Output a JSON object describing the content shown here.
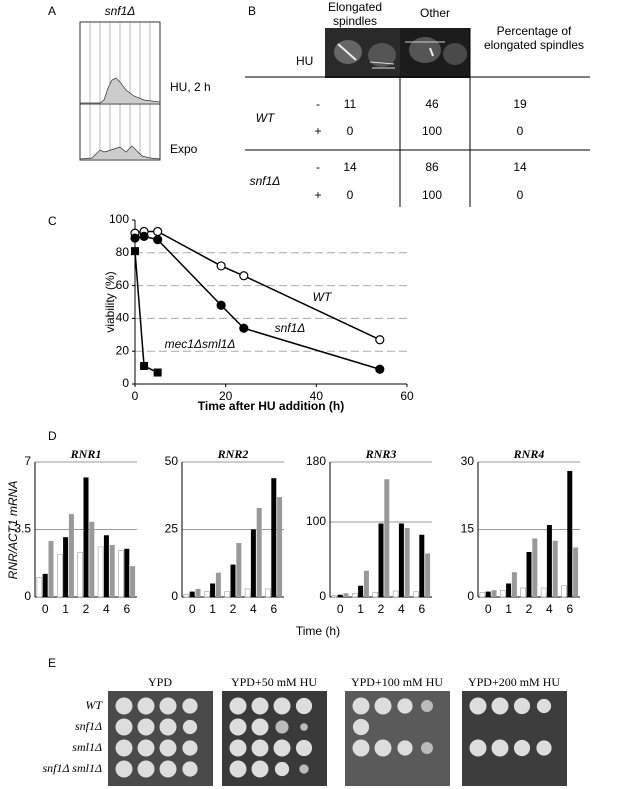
{
  "panels": {
    "a": {
      "label": "A",
      "title": "snf1Δ",
      "rows": [
        "HU, 2 h",
        "Expo"
      ]
    },
    "b": {
      "label": "B",
      "hu_header": "HU",
      "columns": [
        "Elongated spindles",
        "Other",
        "Percentage of elongated spindles"
      ],
      "groups": [
        {
          "strain": "WT",
          "rows": [
            {
              "hu": "-",
              "values": [
                11,
                46,
                19
              ]
            },
            {
              "hu": "+",
              "values": [
                0,
                100,
                0
              ]
            }
          ]
        },
        {
          "strain": "snf1Δ",
          "rows": [
            {
              "hu": "-",
              "values": [
                14,
                86,
                14
              ]
            },
            {
              "hu": "+",
              "values": [
                0,
                100,
                0
              ]
            }
          ]
        }
      ]
    },
    "d": {
      "label": "D",
      "ylabel": "RNR/ACT1 mRNA",
      "xlabel": "Time (h)"
    },
    "e": {
      "label": "E",
      "conditions": [
        "YPD",
        "YPD+50 mM HU",
        "YPD+100 mM HU",
        "YPD+200 mM HU"
      ],
      "strains": [
        "WT",
        "snf1Δ",
        "sml1Δ",
        "snf1Δ sml1Δ"
      ]
    }
  },
  "chart_data": [
    {
      "type": "line",
      "label": "C",
      "xlabel": "Time after HU addition (h)",
      "ylabel": "viability (%)",
      "xlim": [
        0,
        60
      ],
      "xticks": [
        0,
        20,
        40,
        60
      ],
      "ylim": [
        0,
        100
      ],
      "yticks": [
        0,
        20,
        40,
        60,
        80,
        100
      ],
      "grid": true,
      "series": [
        {
          "name": "WT",
          "color": "#000000",
          "marker": "open-circle",
          "x": [
            0,
            2,
            5,
            19,
            24,
            54
          ],
          "values": [
            92,
            93,
            93,
            72,
            66,
            27
          ]
        },
        {
          "name": "snf1Δ",
          "color": "#000000",
          "marker": "circle",
          "x": [
            0,
            2,
            5,
            19,
            24,
            54
          ],
          "values": [
            89,
            90,
            88,
            48,
            34,
            9
          ]
        },
        {
          "name": "mec1Δsml1Δ",
          "color": "#000000",
          "marker": "square",
          "x": [
            0,
            2,
            5
          ],
          "values": [
            81,
            11,
            7
          ]
        }
      ]
    },
    {
      "type": "bar",
      "title": "RNR1",
      "categories": [
        "0",
        "1",
        "2",
        "4",
        "6"
      ],
      "ylim": [
        0,
        7
      ],
      "yticks": [
        0,
        3.5,
        7
      ],
      "grid": true,
      "series": [
        {
          "color": "#ffffff",
          "values": [
            1.0,
            2.2,
            2.3,
            2.6,
            2.4
          ]
        },
        {
          "color": "#000000",
          "values": [
            1.2,
            3.1,
            6.2,
            3.2,
            2.5
          ]
        },
        {
          "color": "#999999",
          "values": [
            2.9,
            4.3,
            3.9,
            2.7,
            1.6
          ]
        }
      ]
    },
    {
      "type": "bar",
      "title": "RNR2",
      "categories": [
        "0",
        "1",
        "2",
        "4",
        "6"
      ],
      "ylim": [
        0,
        50
      ],
      "yticks": [
        0,
        25,
        50
      ],
      "grid": true,
      "series": [
        {
          "color": "#ffffff",
          "values": [
            1,
            2,
            2,
            3,
            3
          ]
        },
        {
          "color": "#000000",
          "values": [
            2,
            5,
            12,
            25,
            44
          ]
        },
        {
          "color": "#999999",
          "values": [
            3,
            9,
            20,
            33,
            37
          ]
        }
      ]
    },
    {
      "type": "bar",
      "title": "RNR3",
      "categories": [
        "0",
        "1",
        "2",
        "4",
        "6"
      ],
      "ylim": [
        0,
        180
      ],
      "yticks": [
        0,
        100,
        180
      ],
      "grid": true,
      "series": [
        {
          "color": "#ffffff",
          "values": [
            2,
            5,
            6,
            8,
            7
          ]
        },
        {
          "color": "#000000",
          "values": [
            3,
            15,
            98,
            98,
            83
          ]
        },
        {
          "color": "#999999",
          "values": [
            5,
            35,
            157,
            92,
            58
          ]
        }
      ]
    },
    {
      "type": "bar",
      "title": "RNR4",
      "categories": [
        "0",
        "1",
        "2",
        "4",
        "6"
      ],
      "ylim": [
        0,
        30
      ],
      "yticks": [
        0,
        15,
        30
      ],
      "grid": true,
      "series": [
        {
          "color": "#ffffff",
          "values": [
            1.0,
            1.5,
            2,
            2,
            2.5
          ]
        },
        {
          "color": "#000000",
          "values": [
            1.2,
            3,
            10,
            16,
            28
          ]
        },
        {
          "color": "#999999",
          "values": [
            1.5,
            5.5,
            13,
            12.5,
            11
          ]
        }
      ]
    }
  ]
}
